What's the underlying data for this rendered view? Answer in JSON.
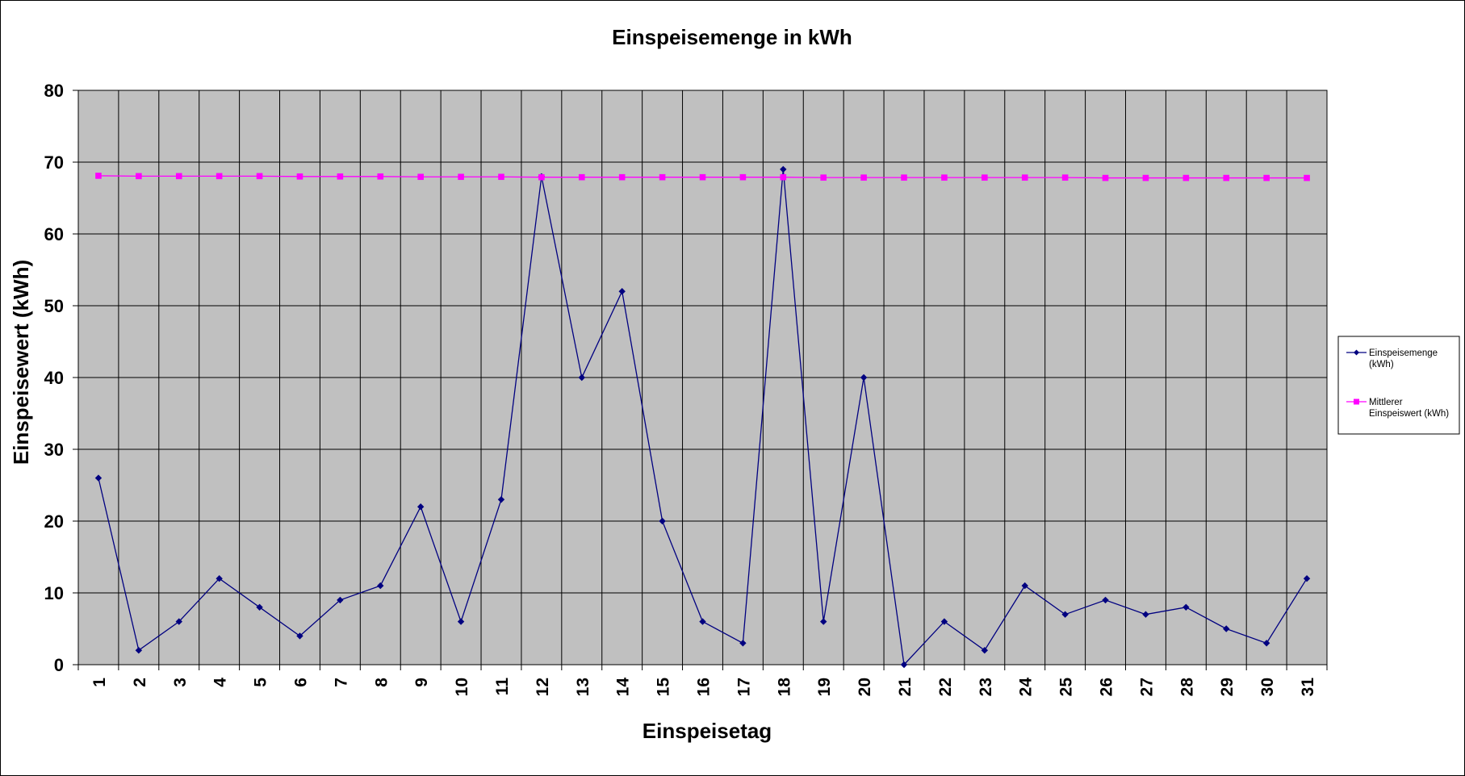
{
  "chart_data": {
    "type": "line",
    "title": "Einspeisemenge in kWh",
    "xlabel": "Einspeisetag",
    "ylabel": "Einspeisewert  (kWh)",
    "categories": [
      "1",
      "2",
      "3",
      "4",
      "5",
      "6",
      "7",
      "8",
      "9",
      "10",
      "11",
      "12",
      "13",
      "14",
      "15",
      "16",
      "17",
      "18",
      "19",
      "20",
      "21",
      "22",
      "23",
      "24",
      "25",
      "26",
      "27",
      "28",
      "29",
      "30",
      "31"
    ],
    "ylim": [
      0,
      80
    ],
    "yticks": [
      0,
      10,
      20,
      30,
      40,
      50,
      60,
      70,
      80
    ],
    "grid": true,
    "plot_background": "#c0c0c0",
    "legend_position": "right",
    "series": [
      {
        "name_lines": [
          "Einspeisemenge",
          "(kWh)"
        ],
        "color": "#000080",
        "marker": "diamond",
        "values": [
          26,
          2,
          6,
          12,
          8,
          4,
          9,
          11,
          22,
          6,
          23,
          68,
          40,
          52,
          20,
          6,
          3,
          69,
          6,
          40,
          0,
          6,
          2,
          11,
          7,
          9,
          7,
          8,
          5,
          3,
          12
        ]
      },
      {
        "name_lines": [
          "Mittlerer",
          "Einspeiswert (kWh)"
        ],
        "color": "#ff00ff",
        "marker": "square",
        "values": [
          68.1,
          68.05,
          68.05,
          68.05,
          68.05,
          68.0,
          68.0,
          68.0,
          67.95,
          67.95,
          67.95,
          67.9,
          67.9,
          67.9,
          67.9,
          67.9,
          67.9,
          67.9,
          67.85,
          67.85,
          67.85,
          67.85,
          67.85,
          67.85,
          67.85,
          67.8,
          67.8,
          67.8,
          67.8,
          67.8,
          67.8
        ]
      }
    ]
  }
}
